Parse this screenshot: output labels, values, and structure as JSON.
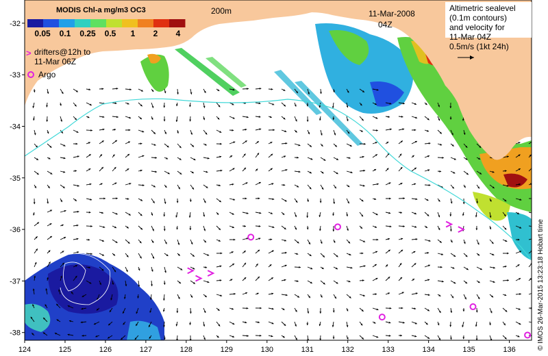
{
  "colorbar": {
    "title": "MODIS Chl-a mg/m3 OC3",
    "ticks": [
      "0.05",
      "0.1",
      "0.25",
      "0.5",
      "1",
      "2",
      "4"
    ],
    "colors": [
      "#1a1aa0",
      "#2050e0",
      "#20a0e8",
      "#30d0c0",
      "#60e060",
      "#c0e030",
      "#f0c020",
      "#f08020",
      "#e03010",
      "#a01010"
    ]
  },
  "isobath_label": "200m",
  "date": "11-Mar-2008",
  "time": "04Z",
  "legend": {
    "line1": "Altimetric sealevel",
    "line2": "(0.1m contours)",
    "line3": "and velocity for",
    "line4": "11-Mar 04Z",
    "line5": "0.5m/s (1kt 24h)"
  },
  "drifters_label_line1": "drifters@12h to",
  "drifters_label_line2": "11-Mar 06Z",
  "argo_label": "Argo",
  "credit": "© IMOS 26-Mar-2015 13:23:18 Hobart time",
  "x_axis_ticks": [
    "124",
    "125",
    "126",
    "127",
    "128",
    "129",
    "130",
    "131",
    "132",
    "133",
    "134",
    "135",
    "136"
  ],
  "y_axis_ticks": [
    "-32",
    "-33",
    "-34",
    "-35",
    "-36",
    "-37",
    "-38"
  ],
  "map_data": {
    "lon_range": [
      124,
      136.55
    ],
    "lat_range": [
      -38.15,
      -31.55
    ],
    "argo_floats": [
      {
        "lon": 129.6,
        "lat": -36.15
      },
      {
        "lon": 131.75,
        "lat": -35.95
      },
      {
        "lon": 132.85,
        "lat": -37.7
      },
      {
        "lon": 135.1,
        "lat": -37.5
      },
      {
        "lon": 136.45,
        "lat": -38.05
      }
    ],
    "drifters": [
      {
        "lon": 128.1,
        "lat": -36.8
      },
      {
        "lon": 128.3,
        "lat": -36.95
      },
      {
        "lon": 128.6,
        "lat": -36.85
      },
      {
        "lon": 134.5,
        "lat": -35.9
      },
      {
        "lon": 134.8,
        "lat": -36.0
      }
    ],
    "land_color": "#f8c89c",
    "isobath_color": "#40d8d8",
    "argo_color": "#e020e0"
  }
}
